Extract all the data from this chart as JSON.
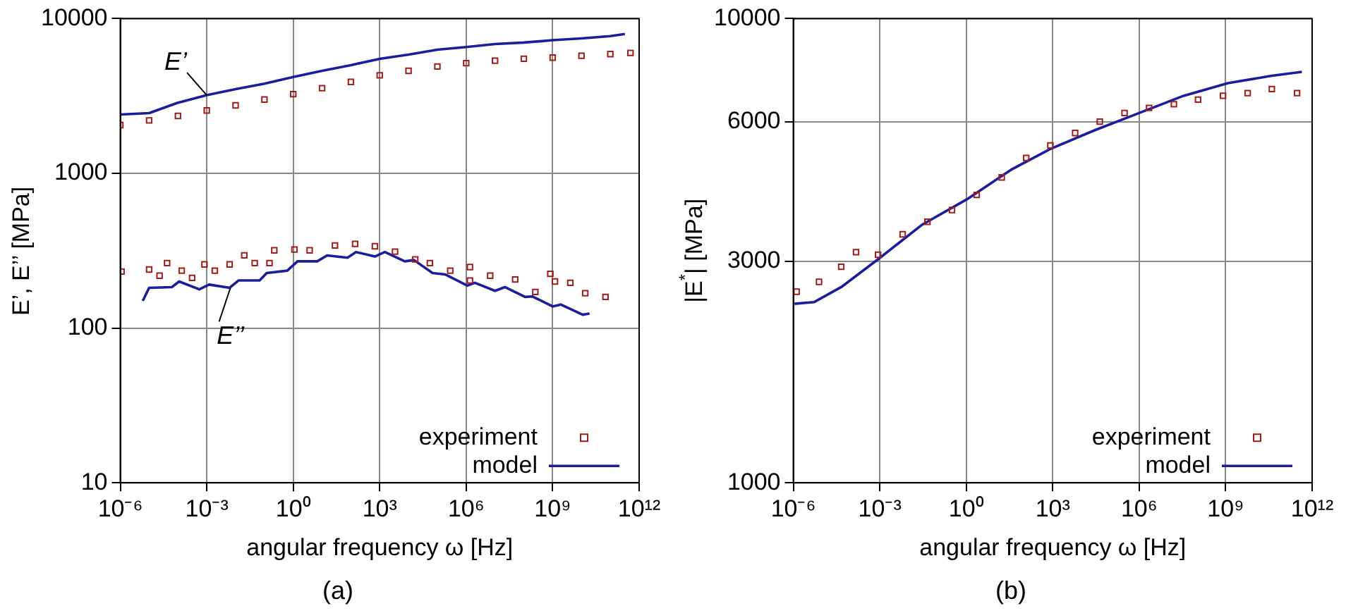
{
  "chart_data": [
    {
      "type": "line",
      "title": "(a)",
      "xlabel": "angular frequency ω [Hz]",
      "ylabel": "E’, E’’ [MPa]",
      "log": "xy",
      "grid": true,
      "legend": "bottom right",
      "xlim": [
        1e-06,
        1000000000000.0
      ],
      "xticks": [
        {
          "value": 1e-06,
          "label": "10⁻⁶"
        },
        {
          "value": 0.001,
          "label": "10⁻³"
        },
        {
          "value": 1,
          "label": "10⁰"
        },
        {
          "value": 1000.0,
          "label": "10³"
        },
        {
          "value": 1000000.0,
          "label": "10⁶"
        },
        {
          "value": 1000000000.0,
          "label": "10⁹"
        },
        {
          "value": 1000000000000.0,
          "label": "10¹²"
        }
      ],
      "ylim": [
        10,
        10000
      ],
      "yticks": [
        10,
        100,
        1000,
        10000
      ],
      "annotations": [
        {
          "text": "E’",
          "x": 0.001,
          "y": 3200
        },
        {
          "text": "E’’",
          "x": 0.0066,
          "y": 182
        }
      ],
      "series": [
        {
          "name": "experiment",
          "type": "scatter",
          "marker": "square",
          "color": "#a31c1c",
          "x": [
            1e-06,
            1e-05,
            0.0001,
            0.001,
            0.01,
            0.1,
            1,
            10,
            100,
            1000.0,
            10000.0,
            100000.0,
            1000000.0,
            10000000.0,
            100000000.0,
            1000000000.0,
            10000000000.0,
            100000000000.0,
            500000000000.0
          ],
          "values": [
            2050,
            2200,
            2350,
            2550,
            2750,
            3000,
            3250,
            3550,
            3900,
            4300,
            4600,
            4900,
            5150,
            5350,
            5500,
            5600,
            5750,
            5900,
            6000
          ]
        },
        {
          "name": "model",
          "type": "line",
          "marker": "none",
          "color": "#1c1c9c",
          "x": [
            1e-06,
            1e-05,
            0.0001,
            0.001,
            0.01,
            0.1,
            1,
            10,
            100,
            1000.0,
            10000.0,
            100000.0,
            1000000.0,
            10000000.0,
            100000000.0,
            1000000000.0,
            10000000000.0,
            100000000000.0,
            320000000000.0
          ],
          "values": [
            2400,
            2450,
            2860,
            3200,
            3500,
            3800,
            4200,
            4600,
            5000,
            5500,
            5850,
            6300,
            6550,
            6850,
            7000,
            7250,
            7450,
            7700,
            7950
          ]
        },
        {
          "type": "scatter",
          "marker": "square",
          "color": "#a31c1c",
          "x": [
            1.1e-06,
            1e-05,
            2.3e-05,
            4.2e-05,
            0.000135,
            0.00031,
            0.00083,
            0.0019,
            0.0062,
            0.02,
            0.046,
            0.15,
            0.22,
            1.1,
            3.7,
            28,
            140,
            680,
            3400,
            17000.0,
            55000.0,
            280000.0,
            1350000.0,
            1350000.0,
            6800000.0,
            50000000.0,
            250000000.0,
            830000000.0,
            1200000000.0,
            4100000000.0,
            13500000000.0,
            68000000000.0
          ],
          "values": [
            232,
            239,
            218,
            263,
            235,
            211,
            258,
            235,
            258,
            295,
            263,
            263,
            318,
            322,
            318,
            342,
            350,
            338,
            312,
            278,
            263,
            235,
            248,
            203,
            218,
            206,
            171,
            224,
            200,
            196,
            168,
            159
          ]
        },
        {
          "type": "line",
          "marker": "none",
          "color": "#1c1c9c",
          "x": [
            6e-06,
            1e-05,
            6.2e-05,
            0.00011,
            0.00055,
            0.0012,
            0.0062,
            0.0126,
            0.068,
            0.12,
            0.62,
            1.4,
            6.8,
            15,
            76,
            150,
            680,
            1500,
            7400,
            15500,
            68000.0,
            190000.0,
            1100000.0,
            2000000.0,
            10000000.0,
            22000000.0,
            110000000.0,
            200000000.0,
            1000000000.0,
            1900000000.0,
            11000000000.0,
            19000000000.0
          ],
          "values": [
            150,
            182,
            184,
            200,
            178,
            191,
            182,
            203,
            203,
            227,
            235,
            270,
            270,
            295,
            285,
            310,
            290,
            310,
            270,
            275,
            227,
            222,
            188,
            196,
            174,
            184,
            159,
            160,
            138,
            142,
            122,
            124
          ]
        }
      ]
    },
    {
      "type": "line",
      "title": "(b)",
      "xlabel": "angular frequency ω [Hz]",
      "ylabel": "|E$^{*}$| [MPa]",
      "log": "xy",
      "grid": true,
      "legend": "bottom right",
      "xlim": [
        1e-06,
        1000000000000.0
      ],
      "xticks": [
        {
          "value": 1e-06,
          "label": "10⁻⁶"
        },
        {
          "value": 0.001,
          "label": "10⁻³"
        },
        {
          "value": 1,
          "label": "10⁰"
        },
        {
          "value": 1000.0,
          "label": "10³"
        },
        {
          "value": 1000000.0,
          "label": "10⁶"
        },
        {
          "value": 1000000000.0,
          "label": "10⁹"
        },
        {
          "value": 1000000000000.0,
          "label": "10¹²"
        }
      ],
      "ylim": [
        1000,
        10000
      ],
      "yticks": [
        1000,
        3000,
        6000,
        10000
      ],
      "series": [
        {
          "name": "experiment",
          "type": "scatter",
          "marker": "square",
          "color": "#a31c1c",
          "x": [
            1.3e-06,
            7.8e-06,
            4.6e-05,
            0.00015,
            0.00087,
            0.0062,
            0.045,
            0.32,
            2.3,
            17,
            120,
            830,
            6000,
            43000.0,
            310000.0,
            2200000.0,
            16000000.0,
            110000000.0,
            810000000.0,
            5800000000.0,
            40000000000.0,
            300000000000.0
          ],
          "values": [
            2580,
            2710,
            2920,
            3140,
            3100,
            3430,
            3650,
            3870,
            4170,
            4550,
            5010,
            5330,
            5670,
            6000,
            6260,
            6420,
            6540,
            6690,
            6820,
            6910,
            7050,
            6910
          ]
        },
        {
          "name": "model",
          "type": "line",
          "marker": "none",
          "color": "#1c1c9c",
          "x": [
            1.1e-06,
            5.2e-06,
            4.6e-05,
            0.00087,
            0.03,
            1.05,
            35,
            830,
            29000.0,
            1000000.0,
            35000000.0,
            1200000000.0,
            40000000000.0,
            440000000000.0
          ],
          "values": [
            2430,
            2450,
            2640,
            3030,
            3600,
            4080,
            4720,
            5240,
            5750,
            6260,
            6820,
            7260,
            7530,
            7680
          ]
        }
      ]
    }
  ]
}
